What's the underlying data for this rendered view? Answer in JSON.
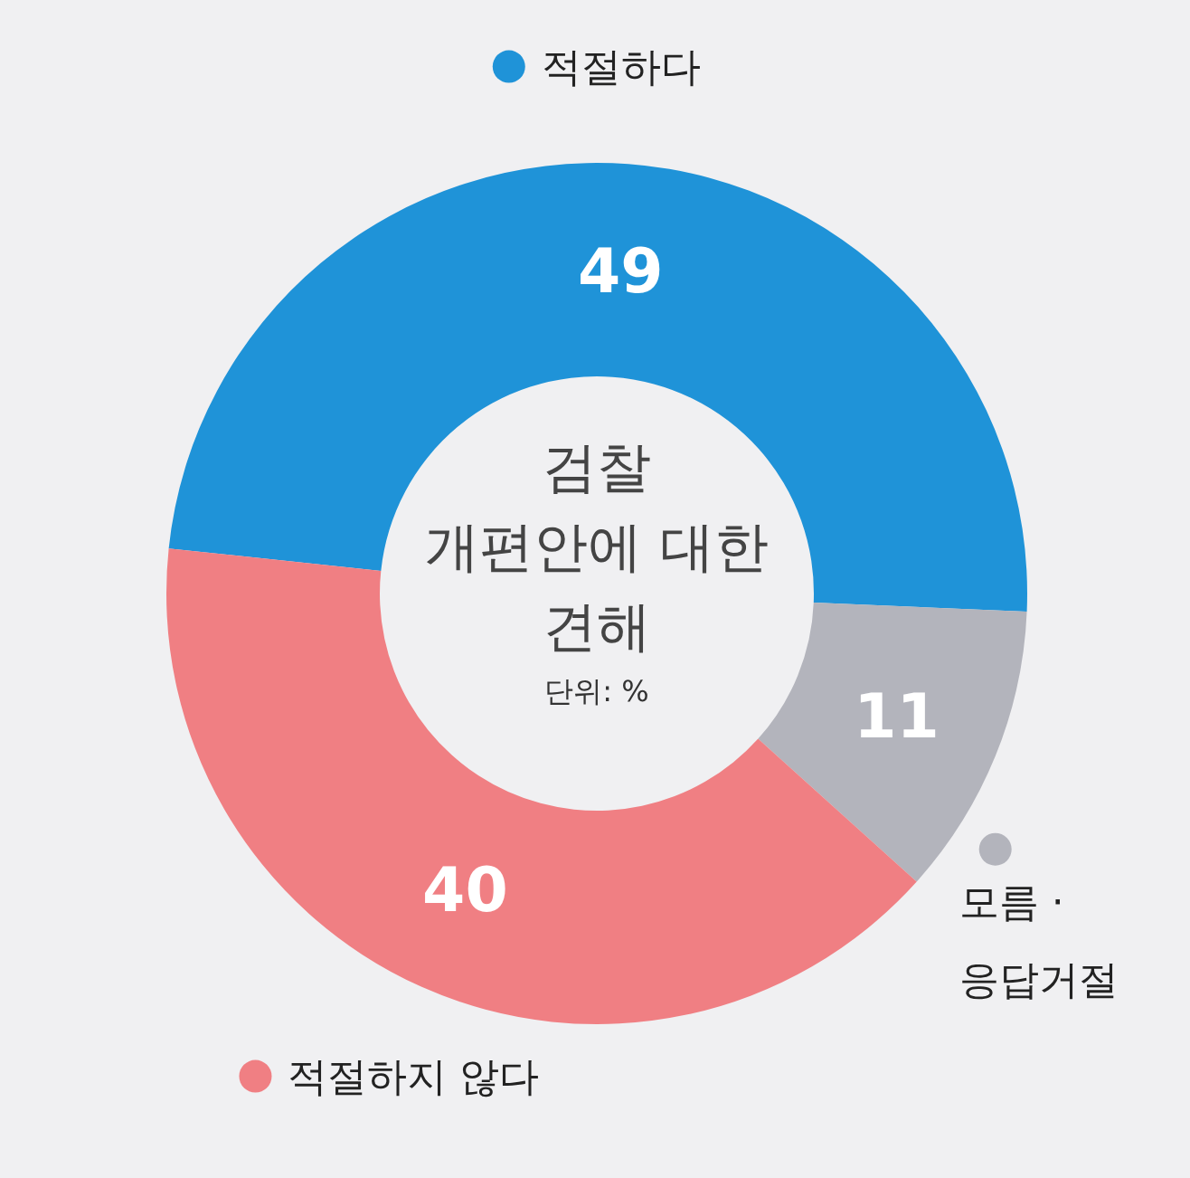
{
  "chart_data": {
    "type": "donut",
    "title": "검찰\n개편안에 대한\n견해",
    "subtitle": "단위: %",
    "categories": [
      "적절하다",
      "모름 ·\n응답거절",
      "적절하지 않다"
    ],
    "values": [
      49,
      11,
      40
    ],
    "colors": [
      "#1f93d8",
      "#b3b4bc",
      "#f07f83"
    ],
    "data_labels": true,
    "legend": "top"
  }
}
